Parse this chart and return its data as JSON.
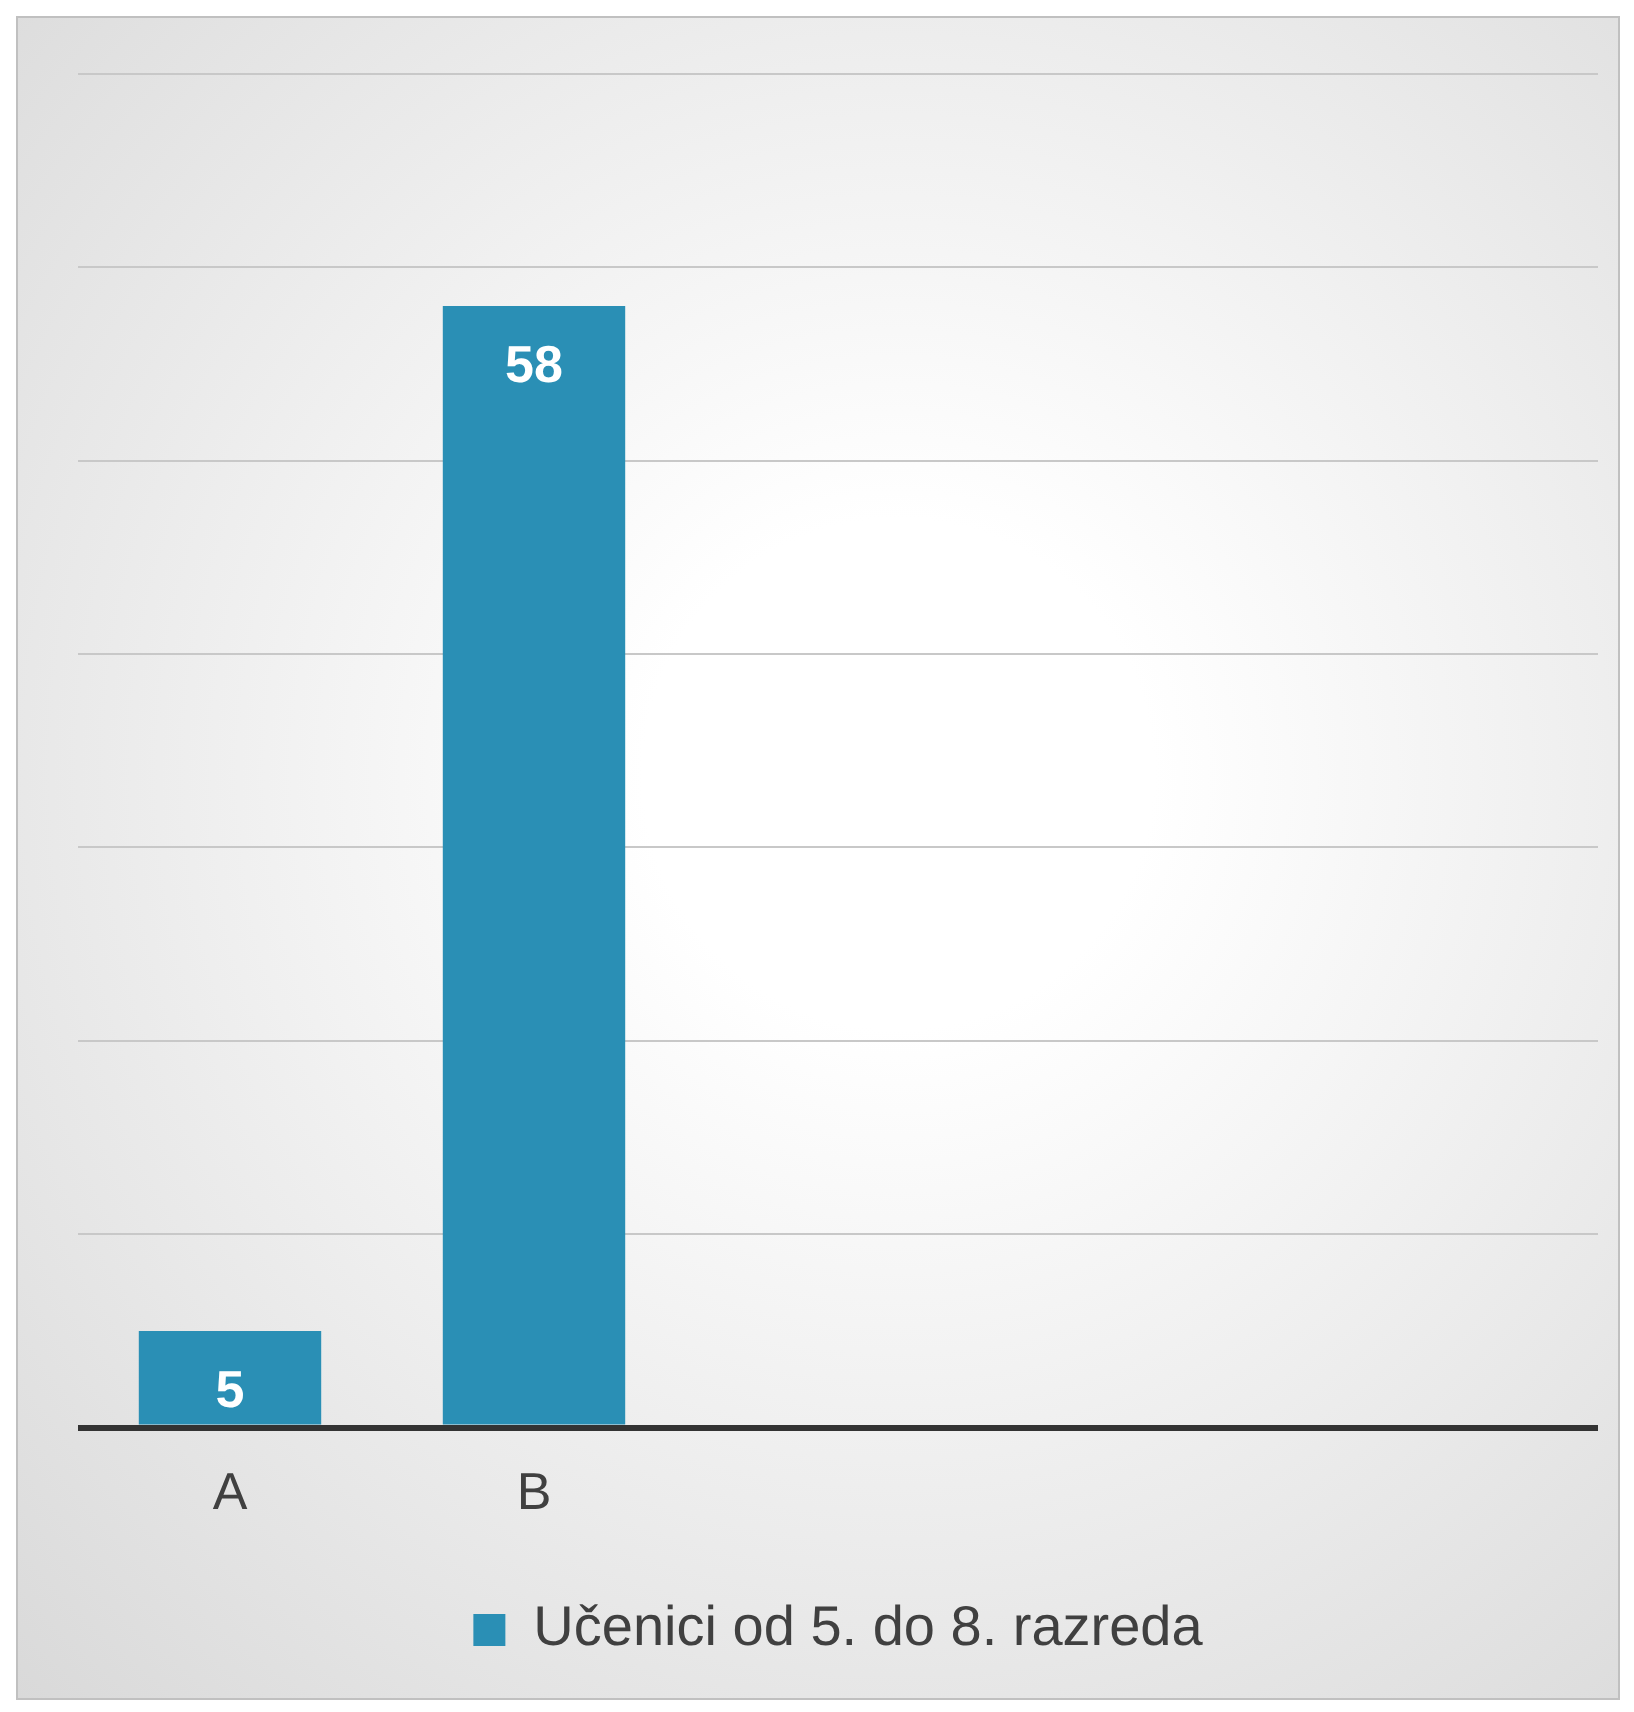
{
  "chart_data": {
    "type": "bar",
    "categories": [
      "A",
      "B",
      null,
      null,
      null
    ],
    "series": [
      {
        "name": "Učenici od 5. do 8. razreda",
        "color": "#2a8fb5",
        "values": [
          5,
          58,
          null,
          null,
          null
        ]
      }
    ],
    "ylim": [
      0,
      70
    ],
    "yticks": [
      {
        "value": 0,
        "label": null
      },
      {
        "value": 10,
        "label": null
      },
      {
        "value": 20,
        "label": null
      },
      {
        "value": 30,
        "label": null
      },
      {
        "value": 40,
        "label": null
      },
      {
        "value": 50,
        "label": null
      },
      {
        "value": 60,
        "label": null
      },
      {
        "value": 70,
        "label": null
      }
    ],
    "tick_labels": "x",
    "grid": "y",
    "legend": "bottom",
    "data_labels": true
  }
}
